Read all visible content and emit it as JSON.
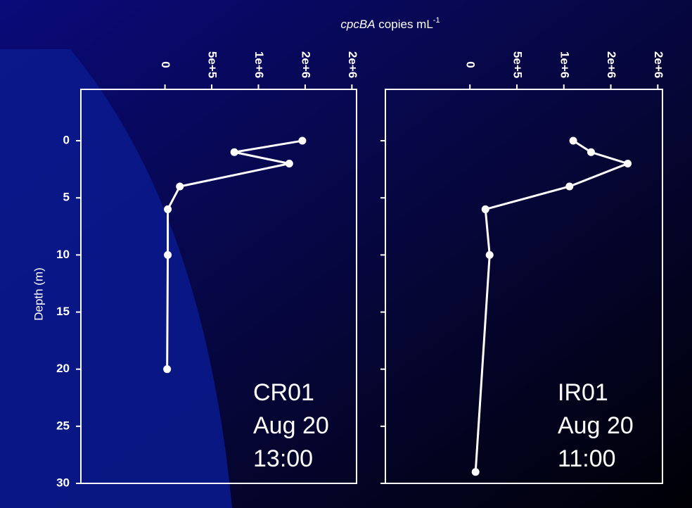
{
  "chart_data": [
    {
      "type": "line",
      "xlabel_italic": "cpcBA",
      "xlabel": "copies mL",
      "xlabel_sup": "-1",
      "ylabel": "Depth (m)",
      "annotations": [
        "CR01",
        "Aug 20",
        "13:00"
      ],
      "xlim": [
        -900000,
        2050000
      ],
      "xticks": [
        0,
        {
          "value": 500000,
          "label": "5e+5"
        },
        {
          "value": 1000000,
          "label": "1e+6"
        },
        {
          "value": 1500000,
          "label": "2e+6"
        },
        {
          "value": 2000000,
          "label": "2e+6"
        }
      ],
      "ylim": [
        -4.5,
        30
      ],
      "yticks": [
        0,
        5,
        10,
        15,
        20,
        25,
        30
      ],
      "y_inverted": true,
      "series": [
        {
          "color": "#ffffff",
          "x": [
            1470000,
            742000,
            1330000,
            159000,
            30000,
            30000,
            23000
          ],
          "values": [
            0,
            1,
            2,
            4,
            6,
            10,
            20
          ]
        }
      ]
    },
    {
      "type": "line",
      "annotations": [
        "IR01",
        "Aug 20",
        "11:00"
      ],
      "xlim": [
        -900000,
        2050000
      ],
      "xticks": [
        0,
        {
          "value": 500000,
          "label": "5e+5"
        },
        {
          "value": 1000000,
          "label": "1e+6"
        },
        {
          "value": 1500000,
          "label": "2e+6"
        },
        {
          "value": 2000000,
          "label": "2e+6"
        }
      ],
      "ylim": [
        -4.5,
        30
      ],
      "yticks": [
        0,
        5,
        10,
        15,
        20,
        25,
        30
      ],
      "y_inverted": true,
      "series": [
        {
          "color": "#ffffff",
          "x": [
            1100000,
            1290000,
            1680000,
            1060000,
            165000,
            210000,
            60000
          ],
          "values": [
            0,
            1,
            2,
            4,
            6,
            10,
            29
          ]
        }
      ]
    }
  ]
}
